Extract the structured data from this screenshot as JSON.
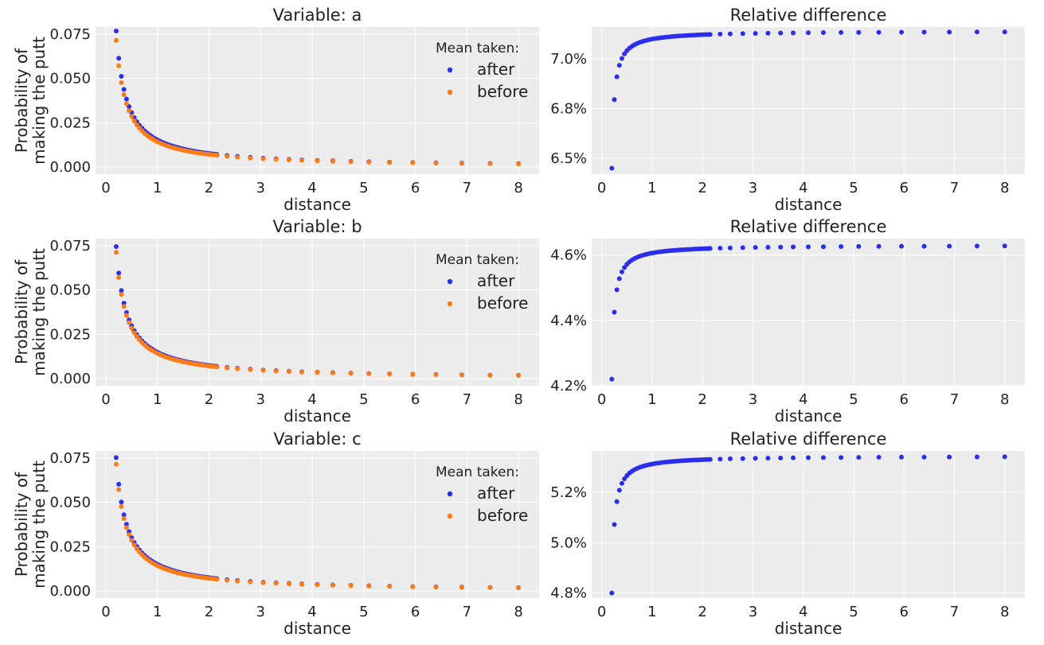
{
  "colors": {
    "background": "#ececec",
    "grid": "#ffffff",
    "after": "#2a2eec",
    "before": "#fa7c17"
  },
  "chart_data": [
    {
      "type": "scatter",
      "title": "Variable: a",
      "xlabel": "distance",
      "ylabel": [
        "Probability of",
        "making the putt"
      ],
      "xlim": [
        -0.2,
        8.4
      ],
      "ylim": [
        -0.004,
        0.079
      ],
      "xticks": [
        0,
        1,
        2,
        3,
        4,
        5,
        6,
        7,
        8
      ],
      "yticks": [
        0.0,
        0.025,
        0.05,
        0.075
      ],
      "ytick_labels": [
        "0.000",
        "0.025",
        "0.050",
        "0.075"
      ],
      "grid": true,
      "legend": {
        "title": "Mean taken:",
        "placement": "upper-right",
        "entries": [
          "after",
          "before"
        ]
      },
      "series": [
        {
          "name": "after",
          "color": "after",
          "curve": {
            "k": 0.01535,
            "p": 1.0,
            "x0": 0.2
          }
        },
        {
          "name": "before",
          "color": "before",
          "curve": {
            "k": 0.0143,
            "p": 1.0,
            "x0": 0.2
          }
        }
      ]
    },
    {
      "type": "scatter",
      "title": "Relative difference",
      "xlabel": "distance",
      "ylabel": [],
      "xlim": [
        -0.2,
        8.4
      ],
      "ylim": [
        6.42,
        7.16
      ],
      "xticks": [
        0,
        1,
        2,
        3,
        4,
        5,
        6,
        7,
        8
      ],
      "yticks": [
        6.5,
        6.75,
        7.0
      ],
      "ytick_labels": [
        "6.5%",
        "6.8%",
        "7.0%"
      ],
      "grid": true,
      "series": [
        {
          "name": "",
          "color": "after",
          "curve": {
            "top": 7.14,
            "bottom": 6.45,
            "x0": 0.2,
            "c": 0.05
          }
        }
      ]
    },
    {
      "type": "scatter",
      "title": "Variable: b",
      "xlabel": "distance",
      "ylabel": [
        "Probability of",
        "making the putt"
      ],
      "xlim": [
        -0.2,
        8.4
      ],
      "ylim": [
        -0.004,
        0.079
      ],
      "xticks": [
        0,
        1,
        2,
        3,
        4,
        5,
        6,
        7,
        8
      ],
      "yticks": [
        0.0,
        0.025,
        0.05,
        0.075
      ],
      "ytick_labels": [
        "0.000",
        "0.025",
        "0.050",
        "0.075"
      ],
      "grid": true,
      "legend": {
        "title": "Mean taken:",
        "placement": "upper-right",
        "entries": [
          "after",
          "before"
        ]
      },
      "series": [
        {
          "name": "after",
          "color": "after",
          "curve": {
            "k": 0.0149,
            "p": 1.0,
            "x0": 0.2
          }
        },
        {
          "name": "before",
          "color": "before",
          "curve": {
            "k": 0.01425,
            "p": 1.0,
            "x0": 0.2
          }
        }
      ]
    },
    {
      "type": "scatter",
      "title": "Relative difference",
      "xlabel": "distance",
      "ylabel": [],
      "xlim": [
        -0.2,
        8.4
      ],
      "ylim": [
        4.2,
        4.65
      ],
      "xticks": [
        0,
        1,
        2,
        3,
        4,
        5,
        6,
        7,
        8
      ],
      "yticks": [
        4.2,
        4.4,
        4.6
      ],
      "ytick_labels": [
        "4.2%",
        "4.4%",
        "4.6%"
      ],
      "grid": true,
      "series": [
        {
          "name": "",
          "color": "after",
          "curve": {
            "top": 4.63,
            "bottom": 4.22,
            "x0": 0.2,
            "c": 0.05
          }
        }
      ]
    },
    {
      "type": "scatter",
      "title": "Variable: c",
      "xlabel": "distance",
      "ylabel": [
        "Probability of",
        "making the putt"
      ],
      "xlim": [
        -0.2,
        8.4
      ],
      "ylim": [
        -0.004,
        0.079
      ],
      "xticks": [
        0,
        1,
        2,
        3,
        4,
        5,
        6,
        7,
        8
      ],
      "yticks": [
        0.0,
        0.025,
        0.05,
        0.075
      ],
      "ytick_labels": [
        "0.000",
        "0.025",
        "0.050",
        "0.075"
      ],
      "grid": true,
      "legend": {
        "title": "Mean taken:",
        "placement": "upper-right",
        "entries": [
          "after",
          "before"
        ]
      },
      "series": [
        {
          "name": "after",
          "color": "after",
          "curve": {
            "k": 0.01505,
            "p": 1.0,
            "x0": 0.2
          }
        },
        {
          "name": "before",
          "color": "before",
          "curve": {
            "k": 0.0143,
            "p": 1.0,
            "x0": 0.2
          }
        }
      ]
    },
    {
      "type": "scatter",
      "title": "Relative difference",
      "xlabel": "distance",
      "ylabel": [],
      "xlim": [
        -0.2,
        8.4
      ],
      "ylim": [
        4.78,
        5.365
      ],
      "xticks": [
        0,
        1,
        2,
        3,
        4,
        5,
        6,
        7,
        8
      ],
      "yticks": [
        4.8,
        5.0,
        5.2
      ],
      "ytick_labels": [
        "4.8%",
        "5.0%",
        "5.2%"
      ],
      "grid": true,
      "series": [
        {
          "name": "",
          "color": "after",
          "curve": {
            "top": 5.345,
            "bottom": 4.8,
            "x0": 0.2,
            "c": 0.05
          }
        }
      ]
    }
  ]
}
